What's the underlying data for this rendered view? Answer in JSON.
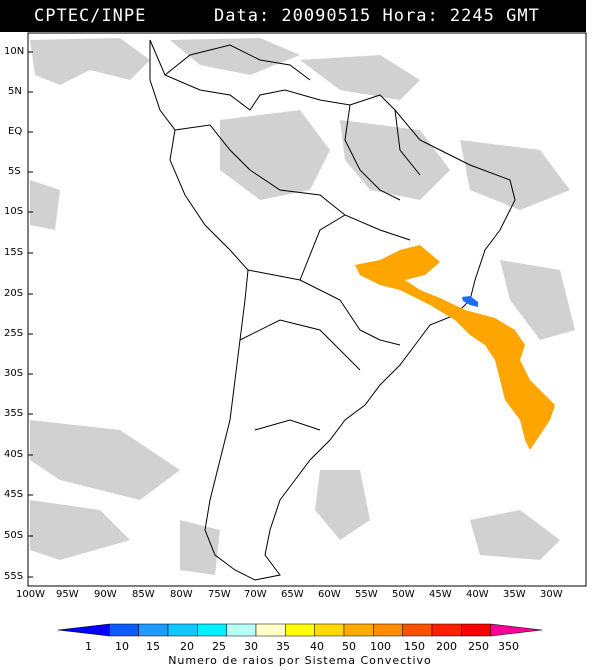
{
  "header": {
    "source": "CPTEC/INPE",
    "datetime": "Data: 20090515 Hora: 2245 GMT"
  },
  "map": {
    "lat_labels": [
      "10N",
      "5N",
      "EQ",
      "5S",
      "10S",
      "15S",
      "20S",
      "25S",
      "30S",
      "35S",
      "40S",
      "45S",
      "50S",
      "55S"
    ],
    "lon_labels": [
      "100W",
      "95W",
      "90W",
      "85W",
      "80W",
      "75W",
      "70W",
      "65W",
      "60W",
      "55W",
      "50W",
      "45W",
      "40W",
      "35W",
      "30W"
    ]
  },
  "legend": {
    "values": [
      "1",
      "10",
      "15",
      "20",
      "25",
      "30",
      "35",
      "40",
      "50",
      "100",
      "150",
      "200",
      "250",
      "350"
    ],
    "colors": [
      "#0000ff",
      "#0a5cff",
      "#1e9bff",
      "#0fc8ff",
      "#00f0ff",
      "#b8fff8",
      "#ffffc8",
      "#ffff00",
      "#ffd800",
      "#ffaa00",
      "#ff8c00",
      "#ff5000",
      "#ff2000",
      "#ff0000",
      "#ff0096"
    ],
    "caption": "Numero de raios por Sistema Convectivo"
  }
}
